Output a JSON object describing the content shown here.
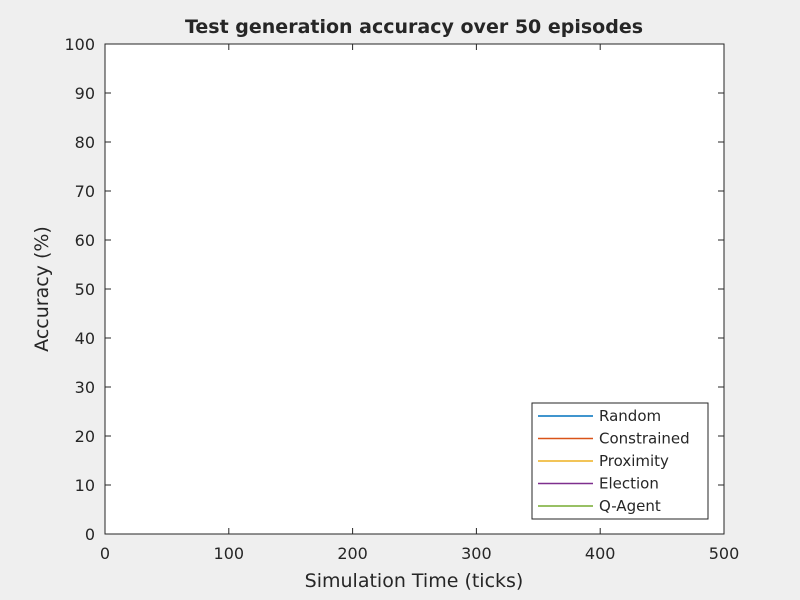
{
  "chart_data": {
    "type": "line",
    "title": "Test generation accuracy over 50 episodes",
    "xlabel": "Simulation Time (ticks)",
    "ylabel": "Accuracy (%)",
    "xlim": [
      0,
      500
    ],
    "ylim": [
      0,
      100
    ],
    "xticks": [
      0,
      100,
      200,
      300,
      400,
      500
    ],
    "yticks": [
      0,
      10,
      20,
      30,
      40,
      50,
      60,
      70,
      80,
      90,
      100
    ],
    "grid": false,
    "legend_position": "bottom-right",
    "series": [
      {
        "name": "Random",
        "color": "#0072bd",
        "x": [],
        "y": []
      },
      {
        "name": "Constrained",
        "color": "#d95319",
        "x": [],
        "y": []
      },
      {
        "name": "Proximity",
        "color": "#edb120",
        "x": [],
        "y": []
      },
      {
        "name": "Election",
        "color": "#7e2f8e",
        "x": [],
        "y": []
      },
      {
        "name": "Q-Agent",
        "color": "#77ac30",
        "x": [],
        "y": []
      }
    ]
  }
}
